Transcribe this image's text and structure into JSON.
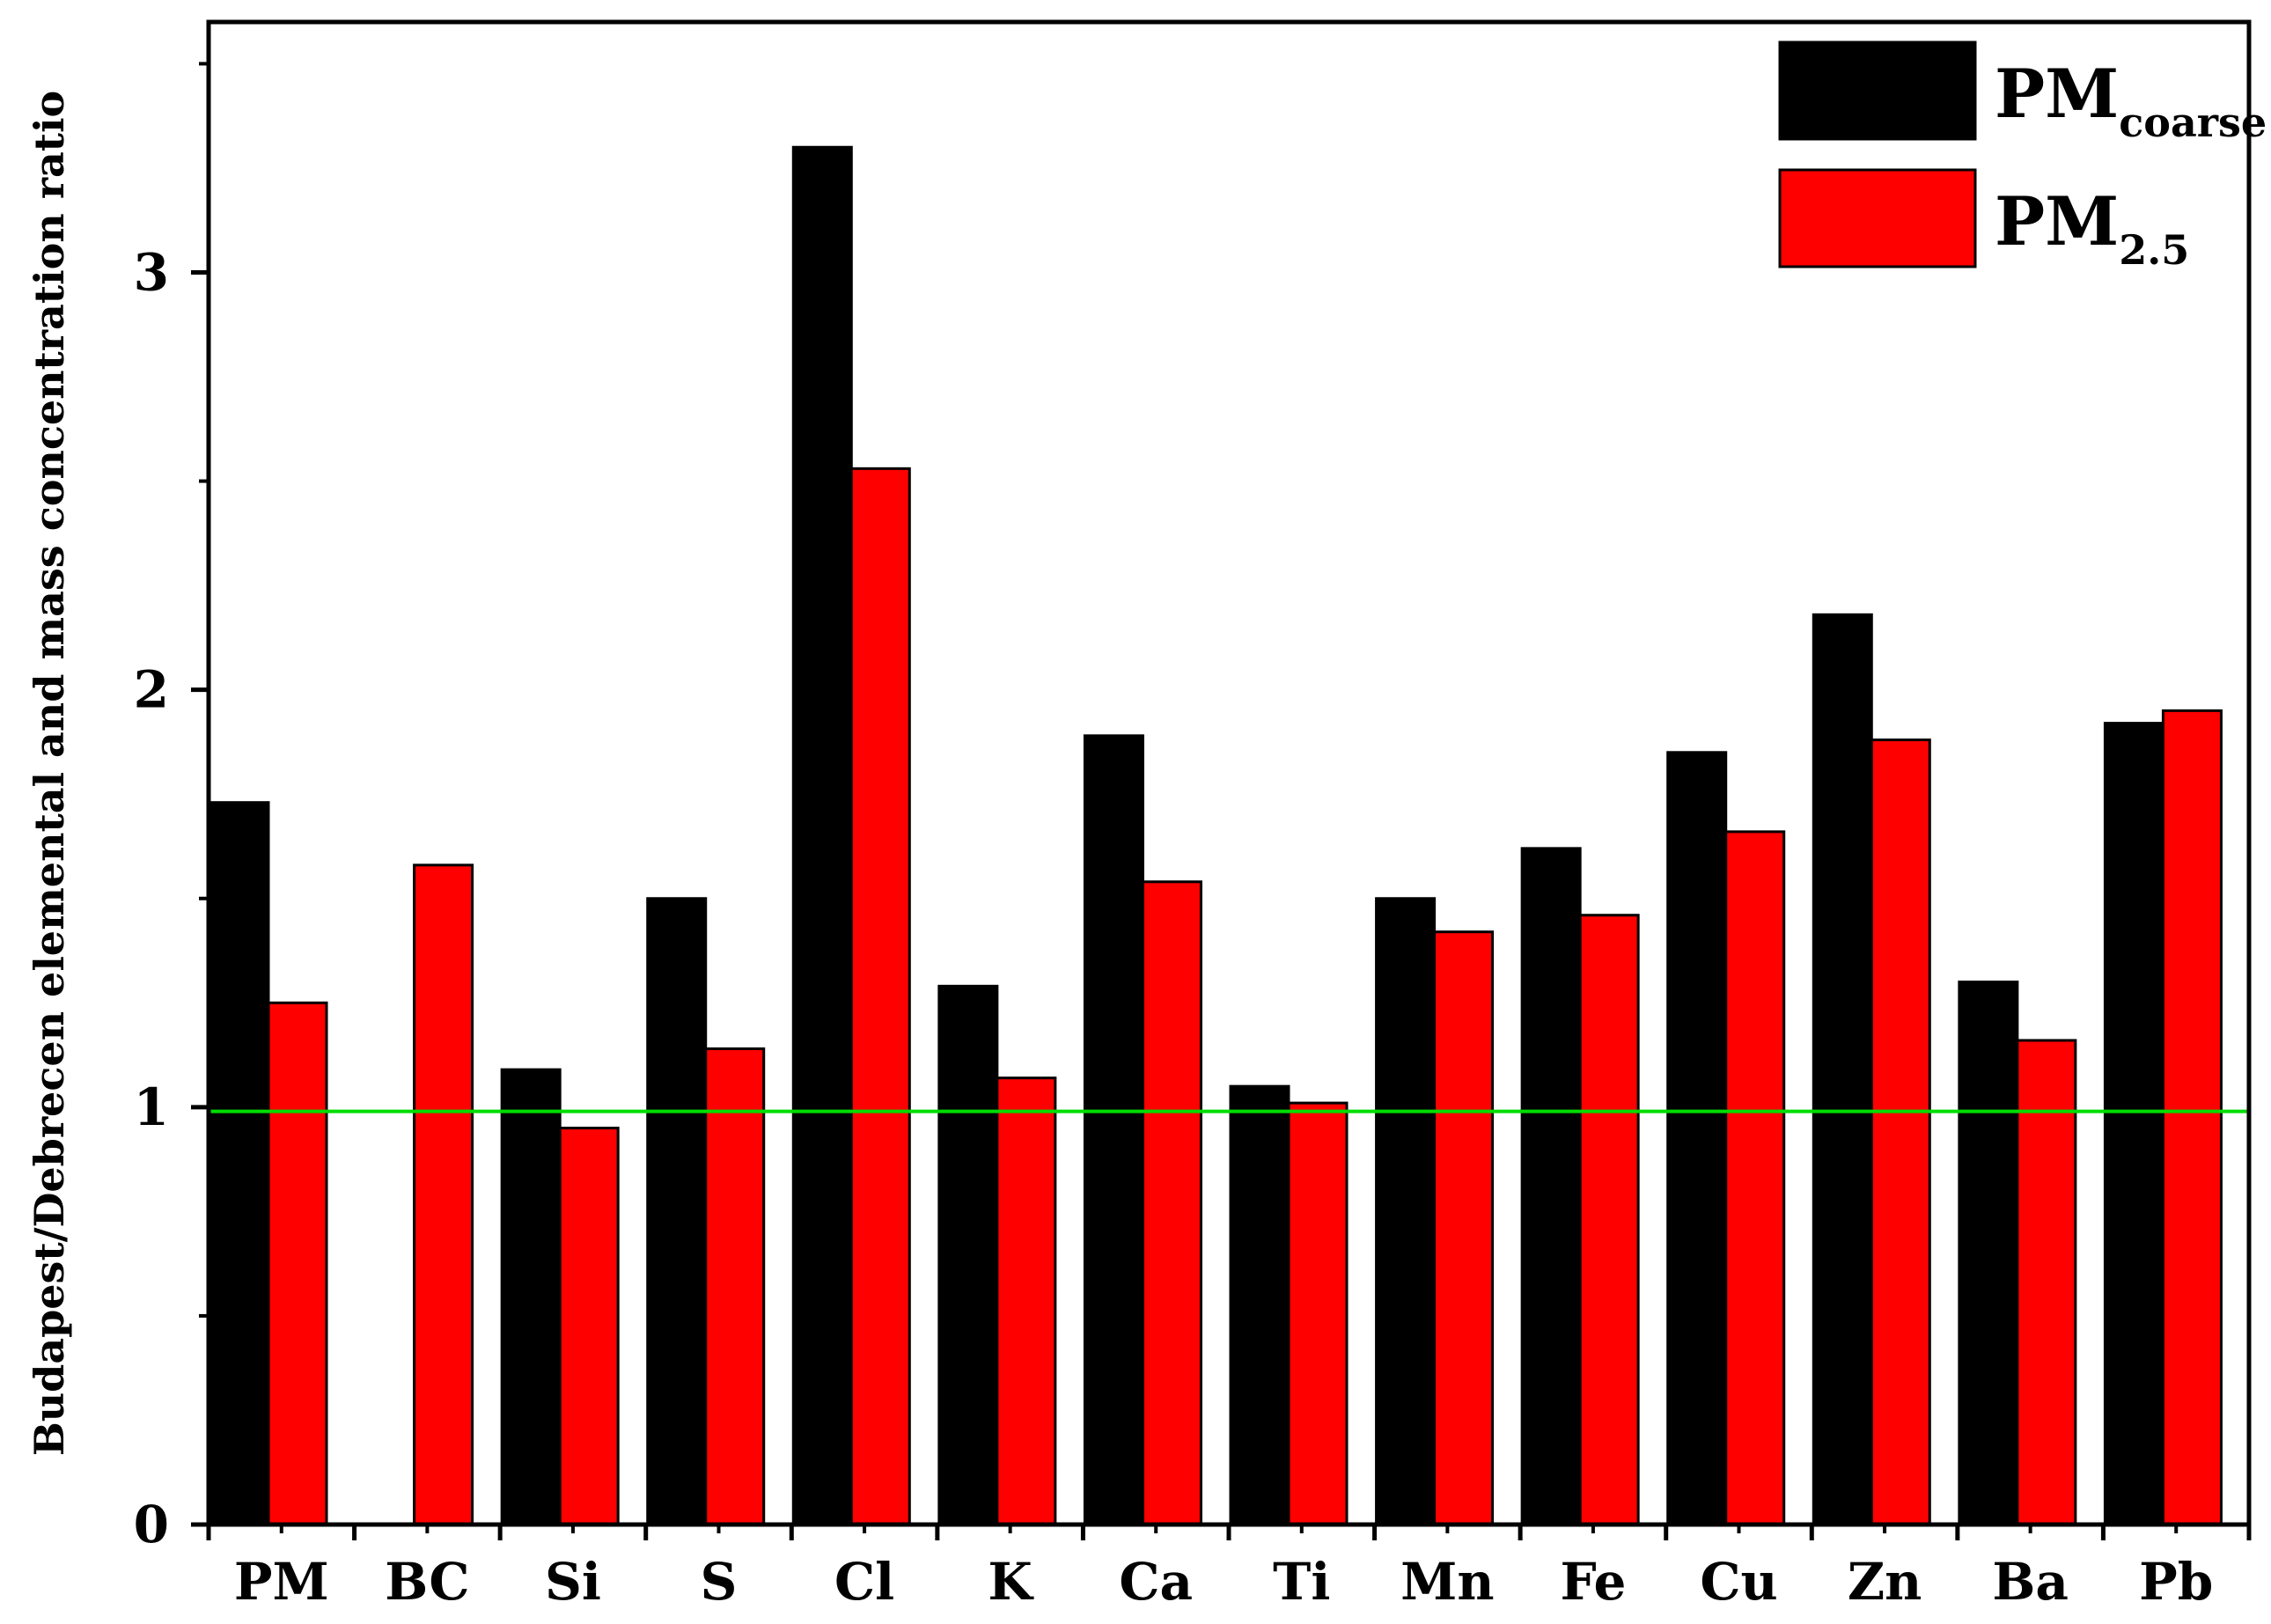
{
  "chart_data": {
    "type": "bar",
    "title": "",
    "xlabel": "",
    "ylabel": "Budapest/Debrecen elemental and mass concentration ratio",
    "ylim": [
      0,
      3.6
    ],
    "yticks": [
      0,
      1,
      2,
      3
    ],
    "categories": [
      "PM",
      "BC",
      "Si",
      "S",
      "Cl",
      "K",
      "Ca",
      "Ti",
      "Mn",
      "Fe",
      "Cu",
      "Zn",
      "Ba",
      "Pb"
    ],
    "series": [
      {
        "name": "PMcoarse",
        "label_main": "PM",
        "label_sub": "coarse",
        "color": "#000000",
        "values": [
          1.73,
          null,
          1.09,
          1.5,
          3.3,
          1.29,
          1.89,
          1.05,
          1.5,
          1.62,
          1.85,
          2.18,
          1.3,
          1.92
        ]
      },
      {
        "name": "PM2.5",
        "label_main": "PM",
        "label_sub": "2.5",
        "color": "#ff0000",
        "values": [
          1.25,
          1.58,
          0.95,
          1.14,
          2.53,
          1.07,
          1.54,
          1.01,
          1.42,
          1.46,
          1.66,
          1.88,
          1.16,
          1.95
        ]
      }
    ],
    "reference_line": {
      "y": 0.99,
      "color": "#00dd00"
    },
    "legend_position": "top-right",
    "grid": false
  }
}
